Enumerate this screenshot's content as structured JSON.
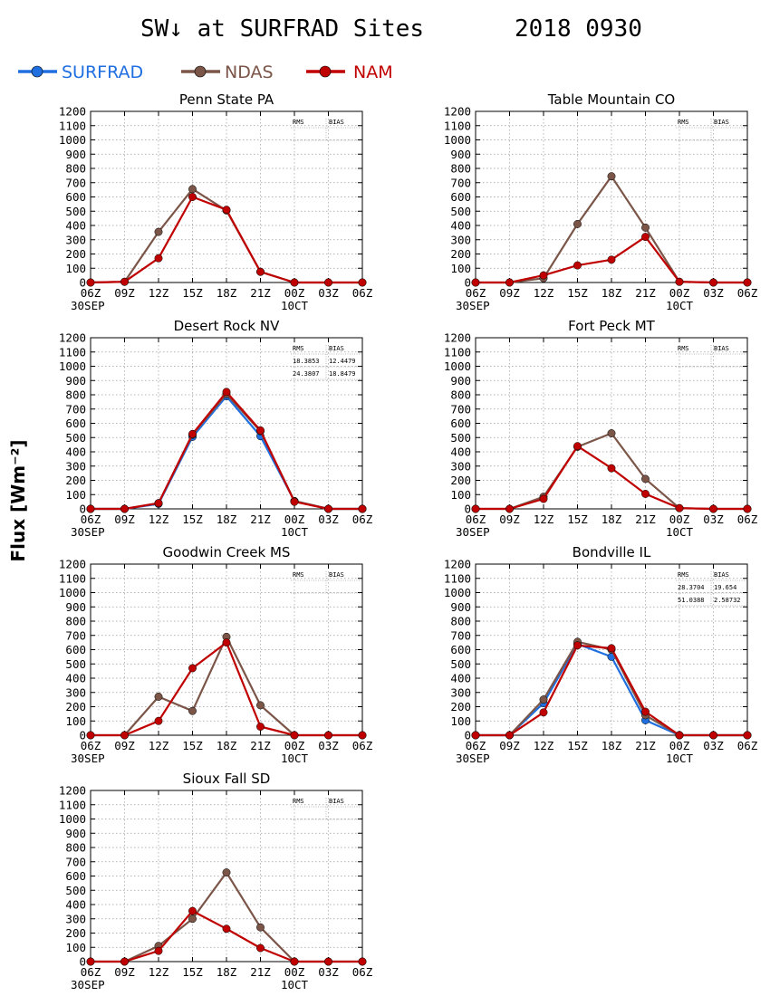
{
  "figure": {
    "title": "SW↓ at SURFRAD Sites",
    "date": "2018 0930",
    "ylabel": "Flux [Wm⁻²]"
  },
  "legend": [
    {
      "name": "SURFRAD",
      "color": "#1f6fe0"
    },
    {
      "name": "NDAS",
      "color": "#7a5548"
    },
    {
      "name": "NAM",
      "color": "#c00000"
    }
  ],
  "chart_data": [
    {
      "type": "line",
      "title": "Penn State PA",
      "x": [
        "06Z",
        "09Z",
        "12Z",
        "15Z",
        "18Z",
        "21Z",
        "00Z",
        "03Z",
        "06Z"
      ],
      "x_dates": [
        "30SEP",
        "10CT"
      ],
      "ylim": [
        0,
        1200
      ],
      "ytick_step": 100,
      "stats_header": [
        "RMS",
        "BIAS"
      ],
      "stats": [],
      "grid": true,
      "series": [
        {
          "name": "NDAS",
          "values": [
            0,
            5,
            355,
            655,
            505,
            75,
            0,
            0,
            0
          ]
        },
        {
          "name": "NAM",
          "values": [
            0,
            5,
            170,
            600,
            510,
            75,
            0,
            0,
            0
          ]
        }
      ]
    },
    {
      "type": "line",
      "title": "Table Mountain CO",
      "x": [
        "06Z",
        "09Z",
        "12Z",
        "15Z",
        "18Z",
        "21Z",
        "00Z",
        "03Z",
        "06Z"
      ],
      "x_dates": [
        "30SEP",
        "10CT"
      ],
      "ylim": [
        0,
        1200
      ],
      "ytick_step": 100,
      "stats_header": [
        "RMS",
        "BIAS"
      ],
      "stats": [],
      "grid": true,
      "series": [
        {
          "name": "NDAS",
          "values": [
            0,
            0,
            30,
            410,
            745,
            385,
            5,
            0,
            0
          ]
        },
        {
          "name": "NAM",
          "values": [
            0,
            0,
            50,
            120,
            160,
            320,
            5,
            0,
            0
          ]
        }
      ]
    },
    {
      "type": "line",
      "title": "Desert Rock NV",
      "x": [
        "06Z",
        "09Z",
        "12Z",
        "15Z",
        "18Z",
        "21Z",
        "00Z",
        "03Z",
        "06Z"
      ],
      "x_dates": [
        "30SEP",
        "10CT"
      ],
      "ylim": [
        0,
        1200
      ],
      "ytick_step": 100,
      "stats_header": [
        "RMS",
        "BIAS"
      ],
      "stats": [
        {
          "series": "NDAS",
          "rms": "18.3853",
          "bias": "12.4479"
        },
        {
          "series": "NAM",
          "rms": "24.3807",
          "bias": "18.8479"
        }
      ],
      "grid": true,
      "series": [
        {
          "name": "SURFRAD",
          "values": [
            0,
            0,
            35,
            505,
            790,
            510,
            55,
            0,
            0
          ]
        },
        {
          "name": "NDAS",
          "values": [
            0,
            0,
            40,
            520,
            805,
            545,
            55,
            0,
            0
          ]
        },
        {
          "name": "NAM",
          "values": [
            0,
            0,
            40,
            525,
            820,
            550,
            50,
            0,
            0
          ]
        }
      ]
    },
    {
      "type": "line",
      "title": "Fort Peck MT",
      "x": [
        "06Z",
        "09Z",
        "12Z",
        "15Z",
        "18Z",
        "21Z",
        "00Z",
        "03Z",
        "06Z"
      ],
      "x_dates": [
        "30SEP",
        "10CT"
      ],
      "ylim": [
        0,
        1200
      ],
      "ytick_step": 100,
      "stats_header": [
        "RMS",
        "BIAS"
      ],
      "stats": [],
      "grid": true,
      "series": [
        {
          "name": "NDAS",
          "values": [
            0,
            0,
            85,
            435,
            530,
            210,
            5,
            0,
            0
          ]
        },
        {
          "name": "NAM",
          "values": [
            0,
            0,
            70,
            440,
            285,
            105,
            5,
            0,
            0
          ]
        }
      ]
    },
    {
      "type": "line",
      "title": "Goodwin Creek MS",
      "x": [
        "06Z",
        "09Z",
        "12Z",
        "15Z",
        "18Z",
        "21Z",
        "00Z",
        "03Z",
        "06Z"
      ],
      "x_dates": [
        "30SEP",
        "10CT"
      ],
      "ylim": [
        0,
        1200
      ],
      "ytick_step": 100,
      "stats_header": [
        "RMS",
        "BIAS"
      ],
      "stats": [],
      "grid": true,
      "series": [
        {
          "name": "NDAS",
          "values": [
            0,
            0,
            270,
            170,
            690,
            210,
            0,
            0,
            0
          ]
        },
        {
          "name": "NAM",
          "values": [
            0,
            0,
            100,
            470,
            650,
            60,
            0,
            0,
            0
          ]
        }
      ]
    },
    {
      "type": "line",
      "title": "Bondville IL",
      "x": [
        "06Z",
        "09Z",
        "12Z",
        "15Z",
        "18Z",
        "21Z",
        "00Z",
        "03Z",
        "06Z"
      ],
      "x_dates": [
        "30SEP",
        "10CT"
      ],
      "ylim": [
        0,
        1200
      ],
      "ytick_step": 100,
      "stats_header": [
        "RMS",
        "BIAS"
      ],
      "stats": [
        {
          "series": "NDAS",
          "rms": "28.3704",
          "bias": "19.654"
        },
        {
          "series": "NAM",
          "rms": "51.0388",
          "bias": "2.58732"
        }
      ],
      "grid": true,
      "series": [
        {
          "name": "SURFRAD",
          "values": [
            0,
            0,
            225,
            640,
            550,
            105,
            0,
            0,
            0
          ]
        },
        {
          "name": "NDAS",
          "values": [
            0,
            0,
            250,
            655,
            600,
            140,
            0,
            0,
            0
          ]
        },
        {
          "name": "NAM",
          "values": [
            0,
            0,
            160,
            630,
            610,
            165,
            0,
            0,
            0
          ]
        }
      ]
    },
    {
      "type": "line",
      "title": "Sioux Fall SD",
      "x": [
        "06Z",
        "09Z",
        "12Z",
        "15Z",
        "18Z",
        "21Z",
        "00Z",
        "03Z",
        "06Z"
      ],
      "x_dates": [
        "30SEP",
        "10CT"
      ],
      "ylim": [
        0,
        1200
      ],
      "ytick_step": 100,
      "stats_header": [
        "RMS",
        "BIAS"
      ],
      "stats": [],
      "grid": true,
      "series": [
        {
          "name": "NDAS",
          "values": [
            0,
            0,
            110,
            300,
            625,
            240,
            0,
            0,
            0
          ]
        },
        {
          "name": "NAM",
          "values": [
            0,
            0,
            75,
            355,
            230,
            95,
            0,
            0,
            0
          ]
        }
      ]
    }
  ]
}
